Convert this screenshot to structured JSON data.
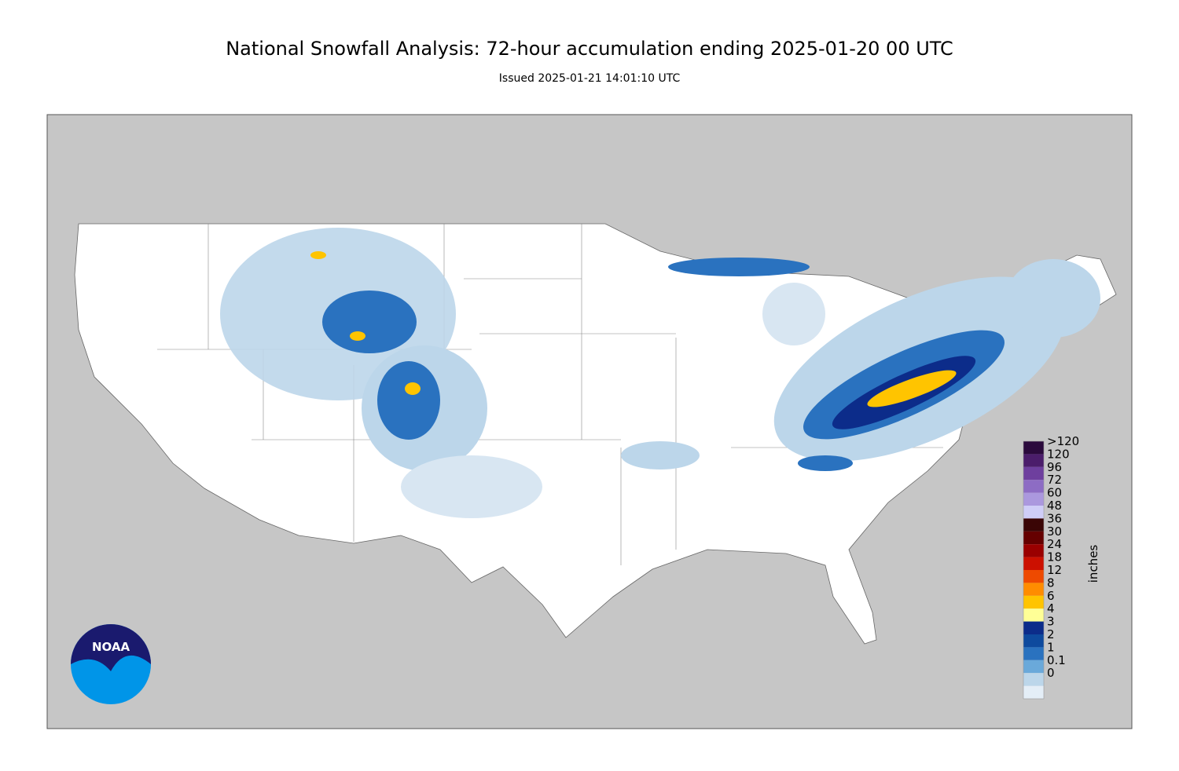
{
  "title": "National Snowfall Analysis: 72-hour accumulation ending 2025-01-20 00 UTC",
  "subtitle": "Issued 2025-01-21 14:01:10 UTC",
  "logo": {
    "text": "NOAA"
  },
  "legend": {
    "unit": "inches",
    "entries": [
      {
        "label": ">120",
        "color": "#2b0a3d"
      },
      {
        "label": "120",
        "color": "#4b1d6b"
      },
      {
        "label": "96",
        "color": "#6e3f9e"
      },
      {
        "label": "72",
        "color": "#8d6cc4"
      },
      {
        "label": "60",
        "color": "#ab98de"
      },
      {
        "label": "48",
        "color": "#cfcdf7"
      },
      {
        "label": "36",
        "color": "#3a0505"
      },
      {
        "label": "30",
        "color": "#650000"
      },
      {
        "label": "24",
        "color": "#9a0000"
      },
      {
        "label": "18",
        "color": "#cc1000"
      },
      {
        "label": "12",
        "color": "#ee4a00"
      },
      {
        "label": "8",
        "color": "#ff8c00"
      },
      {
        "label": "6",
        "color": "#ffc400"
      },
      {
        "label": "4",
        "color": "#ffff96"
      },
      {
        "label": "3",
        "color": "#0c2c8a"
      },
      {
        "label": "2",
        "color": "#0e4a9e"
      },
      {
        "label": "1",
        "color": "#2a72bf"
      },
      {
        "label": "0.1",
        "color": "#6aa9da"
      },
      {
        "label": "0",
        "color": "#bcd6ea"
      }
    ],
    "base_color": "#e4eef7"
  }
}
